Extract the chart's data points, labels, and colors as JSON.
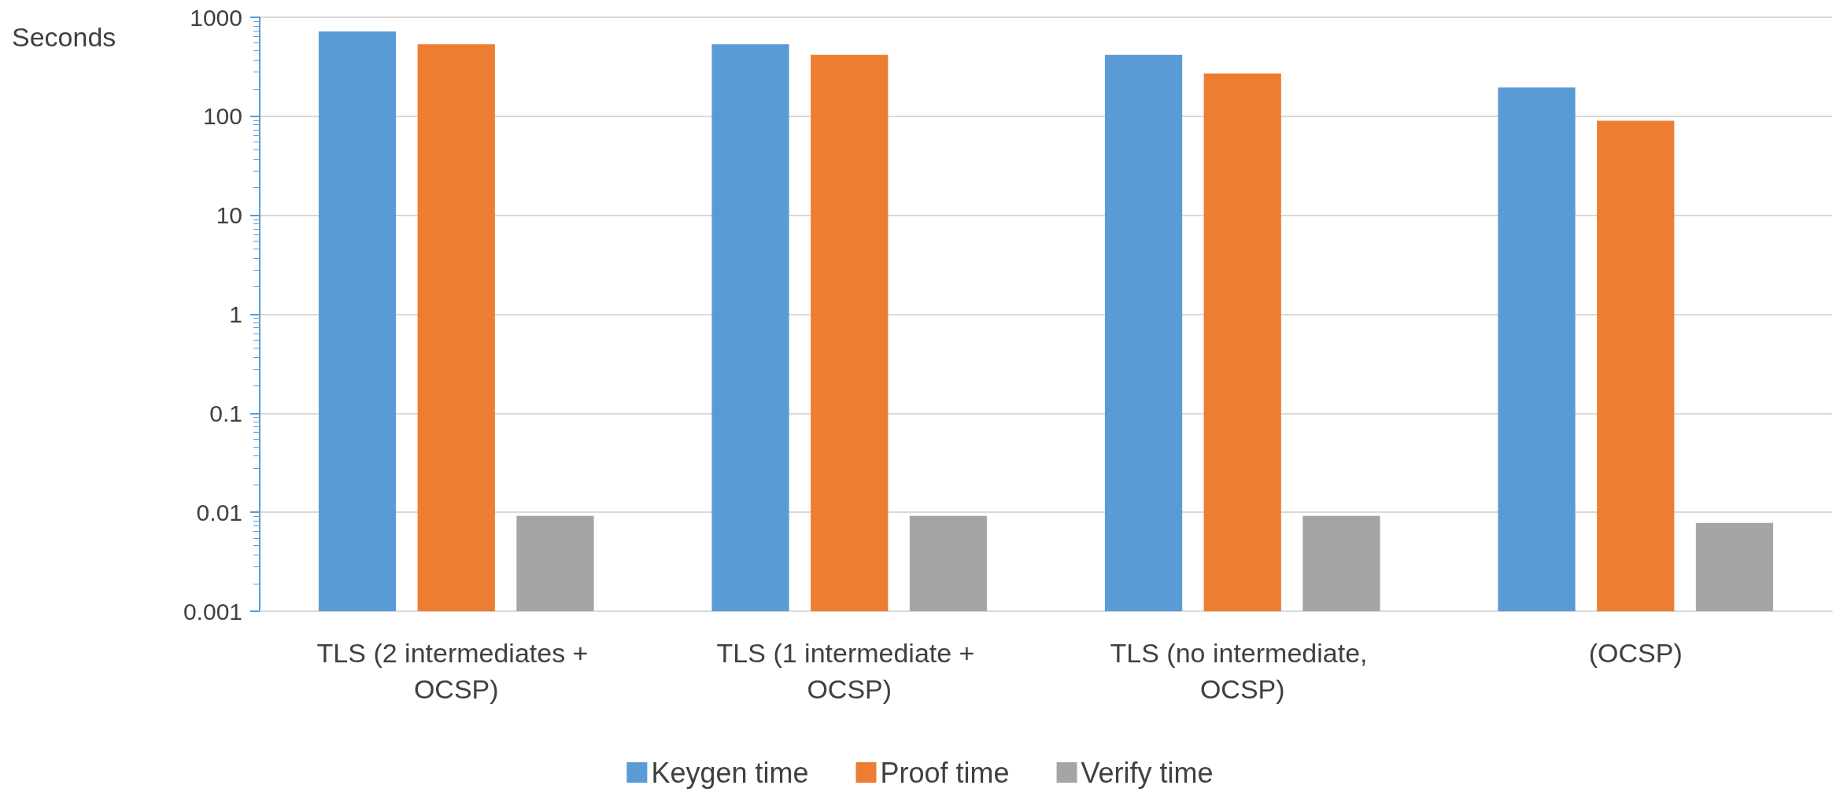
{
  "chart_data": {
    "type": "bar",
    "ylabel": "Seconds",
    "categories": [
      "TLS (2 intermediates + OCSP)",
      "TLS (1 intermediate + OCSP)",
      "TLS (no intermediate, OCSP)",
      "(OCSP)"
    ],
    "series": [
      {
        "name": "Keygen time",
        "color": "#5b9bd5",
        "values": [
          720,
          535,
          418,
          195
        ]
      },
      {
        "name": "Proof time",
        "color": "#ed7d31",
        "values": [
          535,
          418,
          270,
          90
        ]
      },
      {
        "name": "Verify time",
        "color": "#a5a5a5",
        "values": [
          0.0092,
          0.0092,
          0.0092,
          0.0078
        ]
      }
    ],
    "log": true,
    "ylim": [
      0.001,
      1000
    ],
    "yticks": [
      0.001,
      0.01,
      0.1,
      1,
      10,
      100,
      1000
    ],
    "grid": "y",
    "legend": "bottom"
  }
}
